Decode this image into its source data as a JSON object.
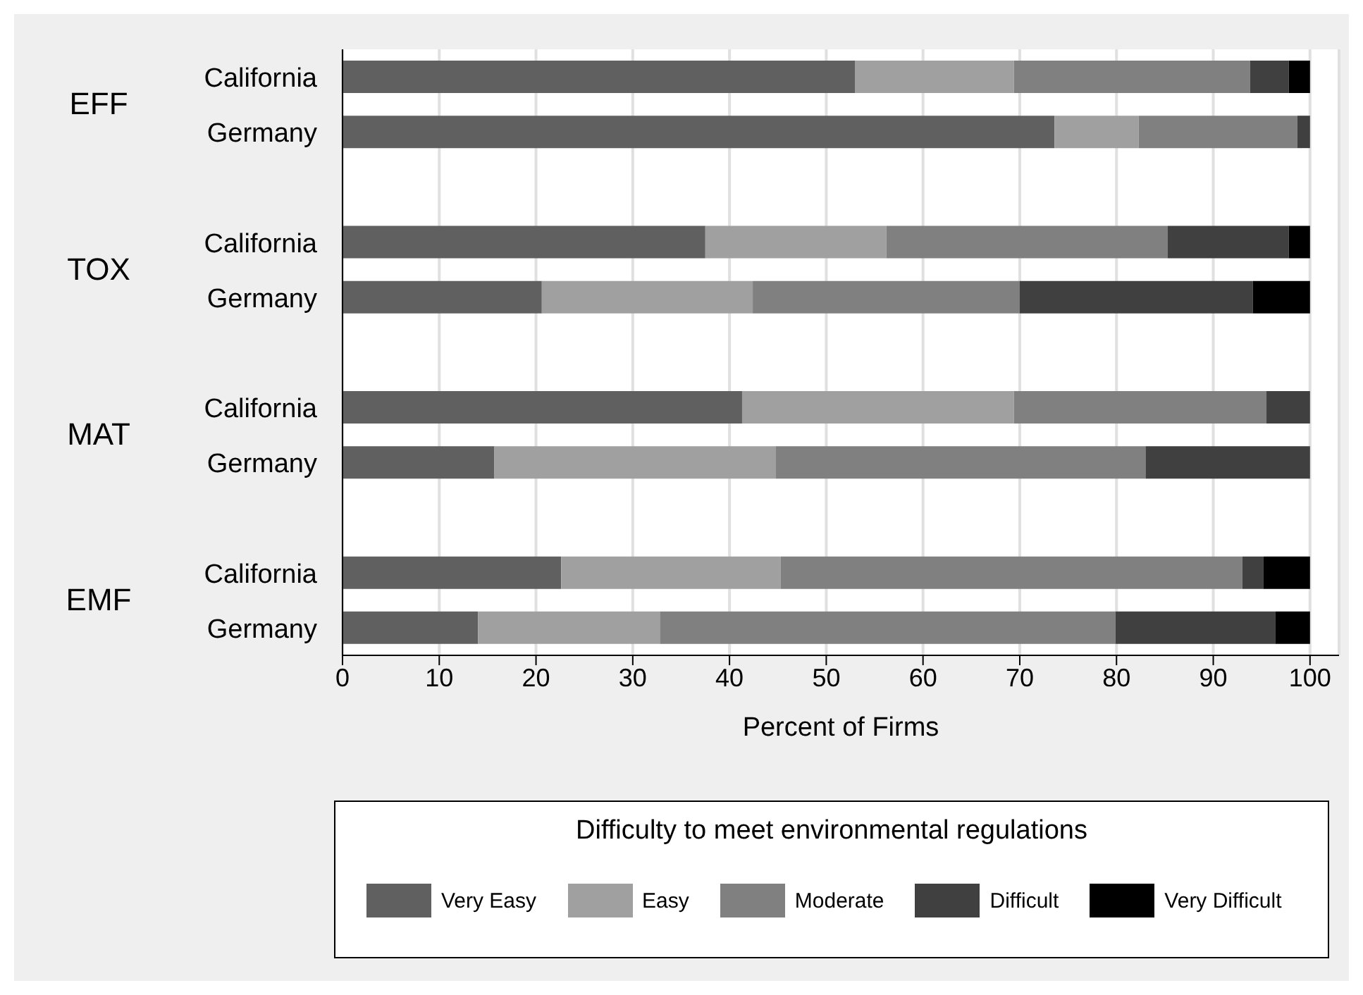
{
  "chart_data": {
    "type": "bar",
    "orientation": "horizontal",
    "stacked": true,
    "categories": [
      "California",
      "Germany",
      "California",
      "Germany",
      "California",
      "Germany",
      "California",
      "Germany"
    ],
    "annotations": [
      "EFF",
      "TOX",
      "MAT",
      "EMF"
    ],
    "xlabel": "Percent of Firms",
    "legend_title": "Difficulty to meet environmental regulations",
    "xlim": [
      0,
      103
    ],
    "xticks": [
      0,
      10,
      20,
      30,
      40,
      50,
      60,
      70,
      80,
      90,
      100
    ],
    "grid": "x",
    "legend": "bottom",
    "series": [
      {
        "name": "Very Easy",
        "color": "#606060",
        "values": [
          53.0,
          73.6,
          37.5,
          20.6,
          41.3,
          15.7,
          22.6,
          14.0
        ]
      },
      {
        "name": "Easy",
        "color": "#a0a0a0",
        "values": [
          16.4,
          8.7,
          18.7,
          21.8,
          28.1,
          29.1,
          22.7,
          18.8
        ]
      },
      {
        "name": "Moderate",
        "color": "#808080",
        "values": [
          24.4,
          16.4,
          29.1,
          27.6,
          26.1,
          38.2,
          47.7,
          47.1
        ]
      },
      {
        "name": "Difficult",
        "color": "#404040",
        "values": [
          4.0,
          1.3,
          12.5,
          24.1,
          4.5,
          17.0,
          2.2,
          16.5
        ]
      },
      {
        "name": "Very Difficult",
        "color": "#000000",
        "values": [
          2.2,
          0,
          2.2,
          5.9,
          0,
          0,
          4.8,
          3.6
        ]
      }
    ]
  }
}
